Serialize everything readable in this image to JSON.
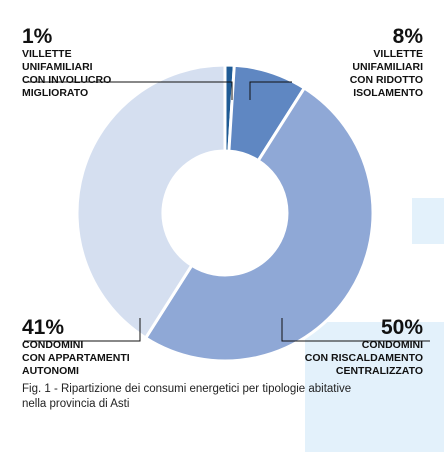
{
  "chart_data": {
    "type": "pie",
    "subtype": "donut",
    "slices": [
      {
        "value": 1,
        "label_pct": "1%",
        "label": "VILLETTE\nUNIFAMILIARI\nCON INVOLUCRO\nMIGLIORATO",
        "color": "#1f5b95"
      },
      {
        "value": 8,
        "label_pct": "8%",
        "label": "VILLETTE\nUNIFAMILIARI\nCON RIDOTTO\nISOLAMENTO",
        "color": "#5f87c2"
      },
      {
        "value": 50,
        "label_pct": "50%",
        "label": "CONDOMINI\nCON RISCALDAMENTO\nCENTRALIZZATO",
        "color": "#8fa8d6"
      },
      {
        "value": 41,
        "label_pct": "41%",
        "label": "CONDOMINI\nCON APPARTAMENTI\nAUTONOMI",
        "color": "#d5dff0"
      }
    ],
    "caption": "Fig. 1 - Ripartizione dei consumi energetici per tipologie abitative\nnella provincia di Asti"
  }
}
